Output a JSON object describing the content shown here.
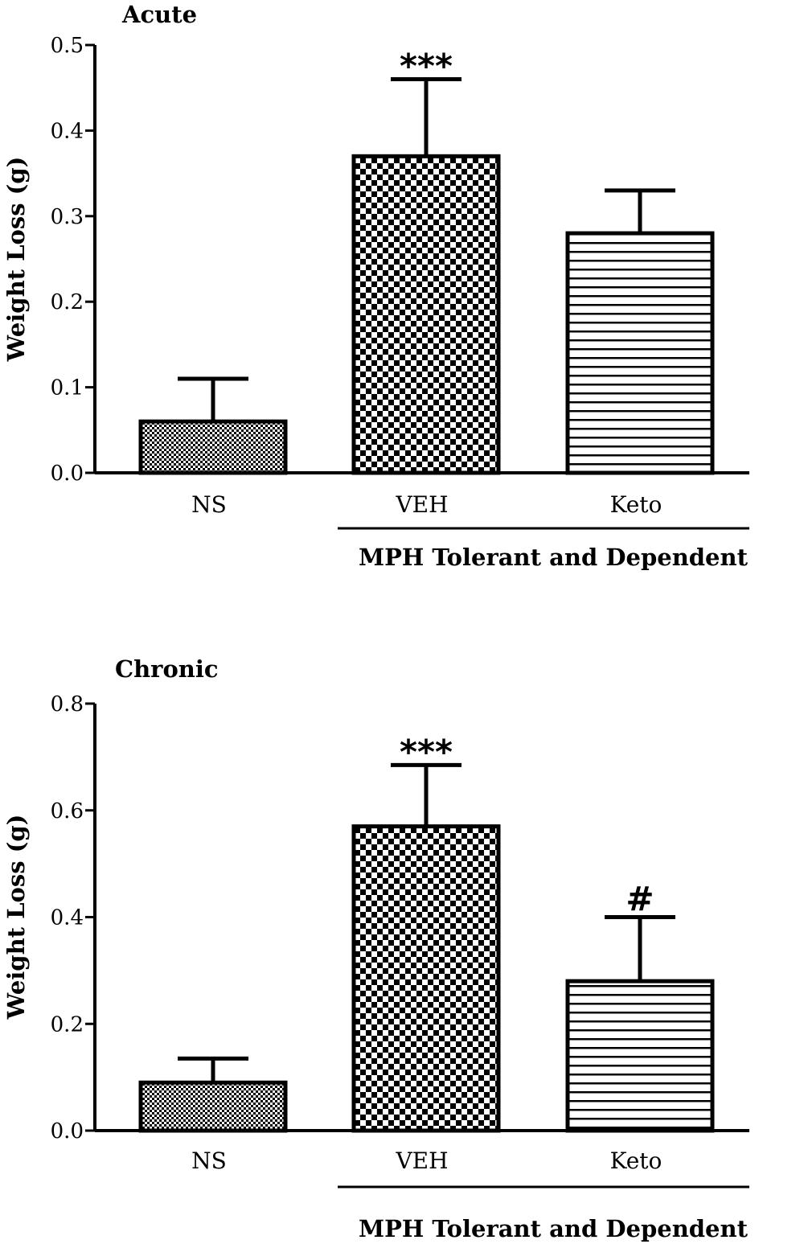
{
  "chart_data": [
    {
      "type": "bar",
      "title": "Acute",
      "ylabel": "Weight Loss (g)",
      "ylim": [
        0,
        0.5
      ],
      "yticks": [
        "0.0",
        "0.1",
        "0.2",
        "0.3",
        "0.4",
        "0.5"
      ],
      "categories": [
        "NS",
        "VEH",
        "Keto"
      ],
      "values": [
        0.06,
        0.37,
        0.28
      ],
      "errors": [
        0.05,
        0.09,
        0.05
      ],
      "annotations": [
        "",
        "***",
        ""
      ],
      "patterns": [
        "fine-checker",
        "checker",
        "horizontal-lines"
      ],
      "group_label": "MPH Tolerant and Dependent",
      "group_categories": [
        "VEH",
        "Keto"
      ]
    },
    {
      "type": "bar",
      "title": "Chronic",
      "ylabel": "Weight Loss (g)",
      "ylim": [
        0,
        0.8
      ],
      "yticks": [
        "0.0",
        "0.2",
        "0.4",
        "0.6",
        "0.8"
      ],
      "categories": [
        "NS",
        "VEH",
        "Keto"
      ],
      "values": [
        0.09,
        0.57,
        0.28
      ],
      "errors": [
        0.045,
        0.115,
        0.12
      ],
      "annotations": [
        "",
        "***",
        "#"
      ],
      "patterns": [
        "fine-checker",
        "checker",
        "horizontal-lines"
      ],
      "group_label": "MPH Tolerant and Dependent",
      "group_categories": [
        "VEH",
        "Keto"
      ]
    }
  ]
}
